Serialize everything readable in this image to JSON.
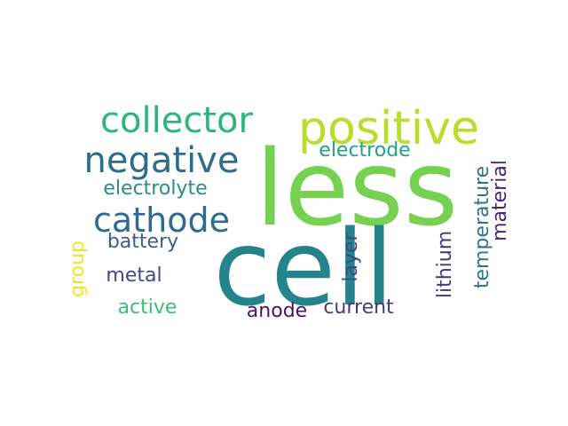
{
  "word_cloud": {
    "words": {
      "less": {
        "text": "less",
        "color": "#76d151"
      },
      "cell": {
        "text": "cell",
        "color": "#24848b"
      },
      "positive": {
        "text": "positive",
        "color": "#b9dd2d"
      },
      "collector": {
        "text": "collector",
        "color": "#2fb57c"
      },
      "negative": {
        "text": "negative",
        "color": "#2a6e8c"
      },
      "cathode": {
        "text": "cathode",
        "color": "#2f6b8e"
      },
      "electrode": {
        "text": "electrode",
        "color": "#21a186"
      },
      "electrolyte": {
        "text": "electrolyte",
        "color": "#2a8b8a"
      },
      "battery": {
        "text": "battery",
        "color": "#3b5f8c"
      },
      "metal": {
        "text": "metal",
        "color": "#404a86"
      },
      "active": {
        "text": "active",
        "color": "#3dbb76"
      },
      "anode": {
        "text": "anode",
        "color": "#47136e"
      },
      "current": {
        "text": "current",
        "color": "#443a83"
      },
      "group": {
        "text": "group",
        "color": "#f5e31f"
      },
      "layer": {
        "text": "layer",
        "color": "#3f4889"
      },
      "lithium": {
        "text": "lithium",
        "color": "#463581"
      },
      "temperature": {
        "text": "temperature",
        "color": "#2c738e"
      },
      "material": {
        "text": "material",
        "color": "#482576"
      }
    }
  }
}
